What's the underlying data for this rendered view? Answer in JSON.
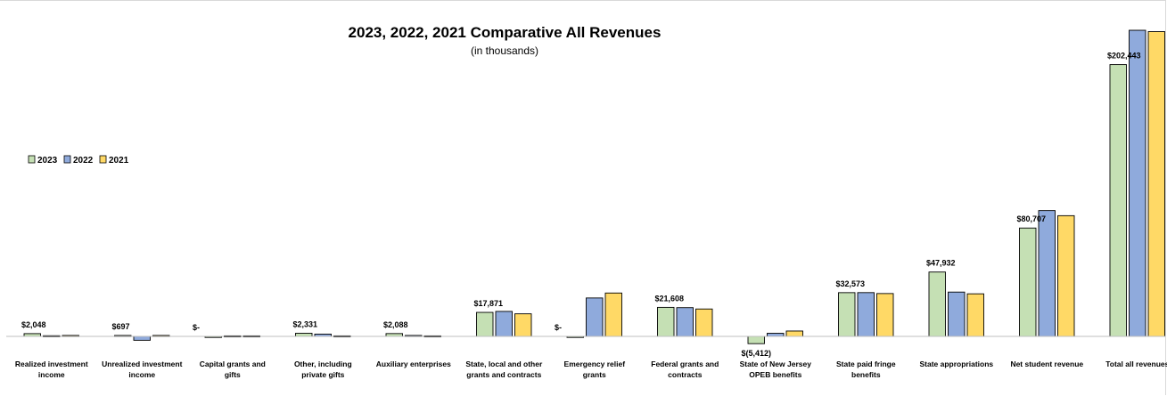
{
  "chart_data": {
    "type": "bar",
    "title": "2023, 2022, 2021 Comparative All Revenues",
    "subtitle": "(in thousands)",
    "legend_position": "left",
    "grid": false,
    "categories": [
      "Realized investment income",
      "Unrealized investment income",
      "Capital grants and gifts",
      "Other, including private gifts",
      "Auxiliary enterprises",
      "State, local and other grants and contracts",
      "Emergency relief grants",
      "Federal grants and contracts",
      "State of New Jersey OPEB benefits",
      "State paid fringe benefits",
      "State appropriations",
      "Net student revenue",
      "Total all revenues"
    ],
    "series": [
      {
        "name": "2023",
        "color": "#c5e0b4",
        "values": [
          2048,
          697,
          0,
          2331,
          2088,
          17871,
          0,
          21608,
          -5412,
          32573,
          47932,
          80707,
          202443
        ]
      },
      {
        "name": "2022",
        "color": "#8faadc",
        "values": [
          500,
          -2900,
          400,
          1700,
          700,
          18600,
          28600,
          21400,
          2300,
          32600,
          33000,
          93700,
          228000
        ]
      },
      {
        "name": "2021",
        "color": "#ffd966",
        "values": [
          700,
          700,
          400,
          400,
          400,
          16800,
          32300,
          20400,
          4000,
          31900,
          31700,
          89900,
          227000
        ]
      }
    ],
    "data_labels": [
      "$2,048",
      "$697",
      "$-",
      "$2,331",
      "$2,088",
      "$17,871",
      "$-",
      "$21,608",
      "$(5,412)",
      "$32,573",
      "$47,932",
      "$80,707",
      "$202,443"
    ],
    "ylim": [
      -10000,
      230000
    ]
  }
}
